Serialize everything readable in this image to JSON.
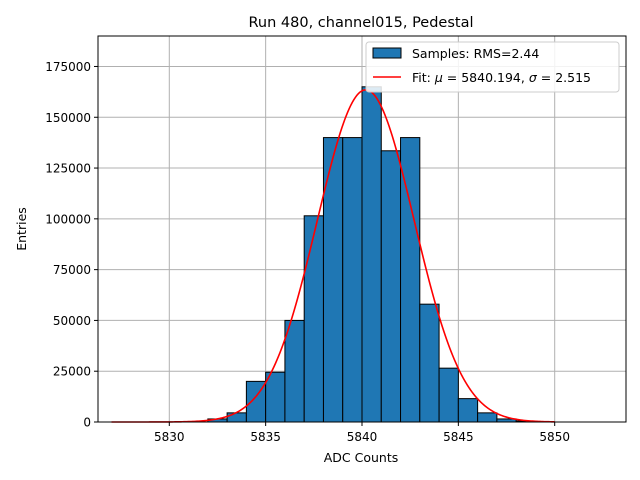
{
  "chart_data": {
    "type": "bar",
    "title": "Run 480, channel015, Pedestal",
    "xlabel": "ADC Counts",
    "ylabel": "Entries",
    "xlim": [
      5826.3,
      5853.7
    ],
    "ylim": [
      0,
      190000
    ],
    "xticks": [
      5830,
      5835,
      5840,
      5845,
      5850
    ],
    "yticks": [
      0,
      25000,
      50000,
      75000,
      100000,
      125000,
      150000,
      175000
    ],
    "grid": true,
    "legend_position": "top-right",
    "bar_color": "#1f77b4",
    "fit_color": "#ff0000",
    "histogram": {
      "name": "Samples: RMS=2.44",
      "bin_width": 1,
      "bin_left_edges": [
        5832,
        5833,
        5834,
        5835,
        5836,
        5837,
        5838,
        5839,
        5840,
        5841,
        5842,
        5843,
        5844,
        5845,
        5846,
        5847,
        5848
      ],
      "counts": [
        1500,
        4500,
        20000,
        24500,
        50000,
        101500,
        140000,
        140000,
        165000,
        133500,
        140000,
        58000,
        26500,
        11500,
        4500,
        1500,
        500
      ]
    },
    "fit": {
      "name_prefix": "Fit: ",
      "mu_symbol": "μ",
      "mu_value": "5840.194",
      "sigma_symbol": "σ",
      "sigma_value": "2.515",
      "mu": 5840.194,
      "sigma": 2.515,
      "amplitude": 163500,
      "x_range": [
        5827,
        5850
      ]
    }
  }
}
